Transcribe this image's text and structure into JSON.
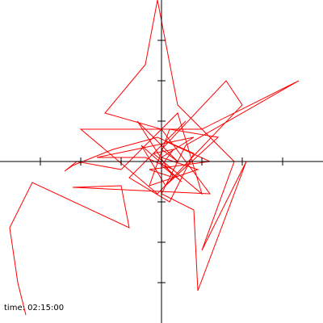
{
  "chart_data": {
    "type": "line",
    "annotation": "time: 02:15:00",
    "xlim": [
      -4,
      4
    ],
    "ylim": [
      -4,
      4
    ],
    "xticks": [
      -3,
      -2,
      -1,
      1,
      2,
      3
    ],
    "yticks": [
      -3,
      -2,
      -1,
      1,
      2,
      3
    ],
    "x": [
      -3.5,
      -3.36,
      -3.56,
      -3.76,
      -3.2,
      -0.8,
      -1,
      -2.2,
      1.2,
      0,
      -1.4,
      -0.4,
      -0.1,
      0.4,
      1.8,
      1,
      2.1,
      0.9,
      0.8,
      0,
      0.6,
      3.4,
      1,
      -1,
      -2,
      -0.1,
      2,
      1.6,
      0,
      0.4,
      -0.6,
      0.3,
      -0.3,
      1.2,
      0.1,
      -0.4,
      0.6,
      -0.8,
      0.2,
      0.8,
      -0.1,
      -1.2,
      -2.2,
      -2.4,
      -2.1,
      -1,
      0.4,
      1,
      -0.2,
      0.3,
      0,
      0.5,
      -0.5,
      0.1,
      1.4,
      0.2,
      -0.3,
      0.9,
      0,
      0.8,
      -1.6,
      -0.4,
      0.3
    ],
    "series": [
      {
        "color": "#ff0000",
        "values": [
          -3.24,
          -3.8,
          -3,
          -1.64,
          -0.52,
          -1.64,
          -0.6,
          -0.64,
          -0.8,
          0.8,
          1.2,
          2.4,
          4,
          1.4,
          0,
          -2.2,
          0,
          -3.2,
          -1.2,
          -0.8,
          0.4,
          2,
          0.8,
          0.8,
          0.8,
          -0.8,
          1.4,
          2,
          0.3,
          0,
          1,
          -0.4,
          -0.2,
          0,
          0.5,
          0,
          1,
          -0.4,
          -1,
          0.2,
          0.6,
          0.3,
          -0.1,
          -0.24,
          0,
          -0.2,
          1.2,
          -0.8,
          0.2,
          0.3,
          -0.1,
          -0.5,
          0.4,
          -0.6,
          0.6,
          0.8,
          -0.6,
          -0.2,
          0.1,
          0.6,
          0.1,
          0.1,
          -0.2
        ]
      }
    ]
  }
}
